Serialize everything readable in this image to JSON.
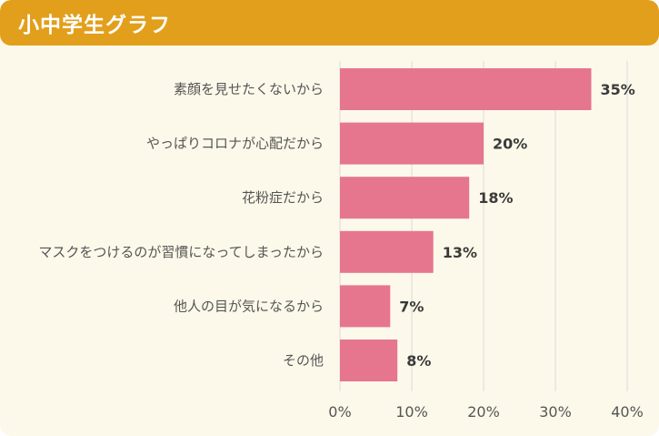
{
  "header": {
    "title": "小中学生グラフ"
  },
  "colors": {
    "header": "#e29f1b",
    "bar": "#e5768e",
    "background": "#fdf9ea",
    "grid": "#d9d9d9"
  },
  "chart_data": {
    "type": "bar",
    "orientation": "horizontal",
    "categories": [
      "素顔を見せたくないから",
      "やっぱりコロナが心配だから",
      "花粉症だから",
      "マスクをつけるのが習慣になってしまったから",
      "他人の目が気になるから",
      "その他"
    ],
    "values": [
      35,
      20,
      18,
      13,
      7,
      8
    ],
    "data_labels": [
      "35%",
      "20%",
      "18%",
      "13%",
      "7%",
      "8%"
    ],
    "xlim": [
      0,
      40
    ],
    "xticks": [
      "0%",
      "10%",
      "20%",
      "30%",
      "40%"
    ],
    "grid": true
  }
}
